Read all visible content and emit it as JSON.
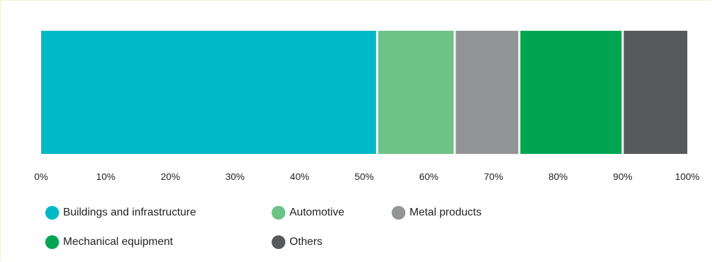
{
  "chart_data": {
    "type": "bar",
    "orientation": "horizontal-stacked",
    "title": "",
    "xlabel": "",
    "ylabel": "",
    "xlim": [
      0,
      100
    ],
    "grid": false,
    "legend_position": "bottom",
    "ticks": [
      "0%",
      "10%",
      "20%",
      "30%",
      "40%",
      "50%",
      "60%",
      "70%",
      "80%",
      "90%",
      "100%"
    ],
    "series": [
      {
        "name": "Buildings and infrastructure",
        "value": 52,
        "color": "#00b9c6"
      },
      {
        "name": "Automotive",
        "value": 12,
        "color": "#6cc287"
      },
      {
        "name": "Metal products",
        "value": 10,
        "color": "#929496"
      },
      {
        "name": "Mechanical equipment",
        "value": 16,
        "color": "#00a551"
      },
      {
        "name": "Others",
        "value": 10,
        "color": "#58595b"
      }
    ]
  }
}
